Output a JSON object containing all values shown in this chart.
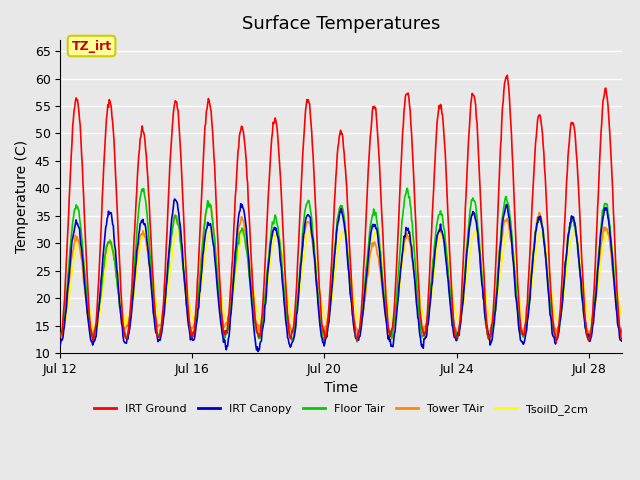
{
  "title": "Surface Temperatures",
  "xlabel": "Time",
  "ylabel": "Temperature (C)",
  "ylim": [
    10,
    67
  ],
  "yticks": [
    10,
    15,
    20,
    25,
    30,
    35,
    40,
    45,
    50,
    55,
    60,
    65
  ],
  "xtick_labels": [
    "Jul 12",
    "Jul 16",
    "Jul 20",
    "Jul 24",
    "Jul 28"
  ],
  "xtick_positions": [
    0,
    4,
    8,
    12,
    16
  ],
  "n_days": 17,
  "n_points_per_day": 48,
  "legend_labels": [
    "IRT Ground",
    "IRT Canopy",
    "Floor Tair",
    "Tower TAir",
    "TsoilD_2cm"
  ],
  "legend_colors": [
    "#FF0000",
    "#0000CC",
    "#00CC00",
    "#FF8800",
    "#FFFF00"
  ],
  "line_widths": [
    1.5,
    1.5,
    1.5,
    1.5,
    1.5
  ],
  "bg_color": "#E8E8E8",
  "plot_bg_color": "#E8E8E8",
  "grid_color": "#FFFFFF",
  "annotation_text": "TZ_irt",
  "annotation_bg": "#FFFF99",
  "annotation_border": "#CCCC00",
  "annotation_fg": "#CC0000",
  "title_fontsize": 13,
  "label_fontsize": 10,
  "tick_fontsize": 9
}
